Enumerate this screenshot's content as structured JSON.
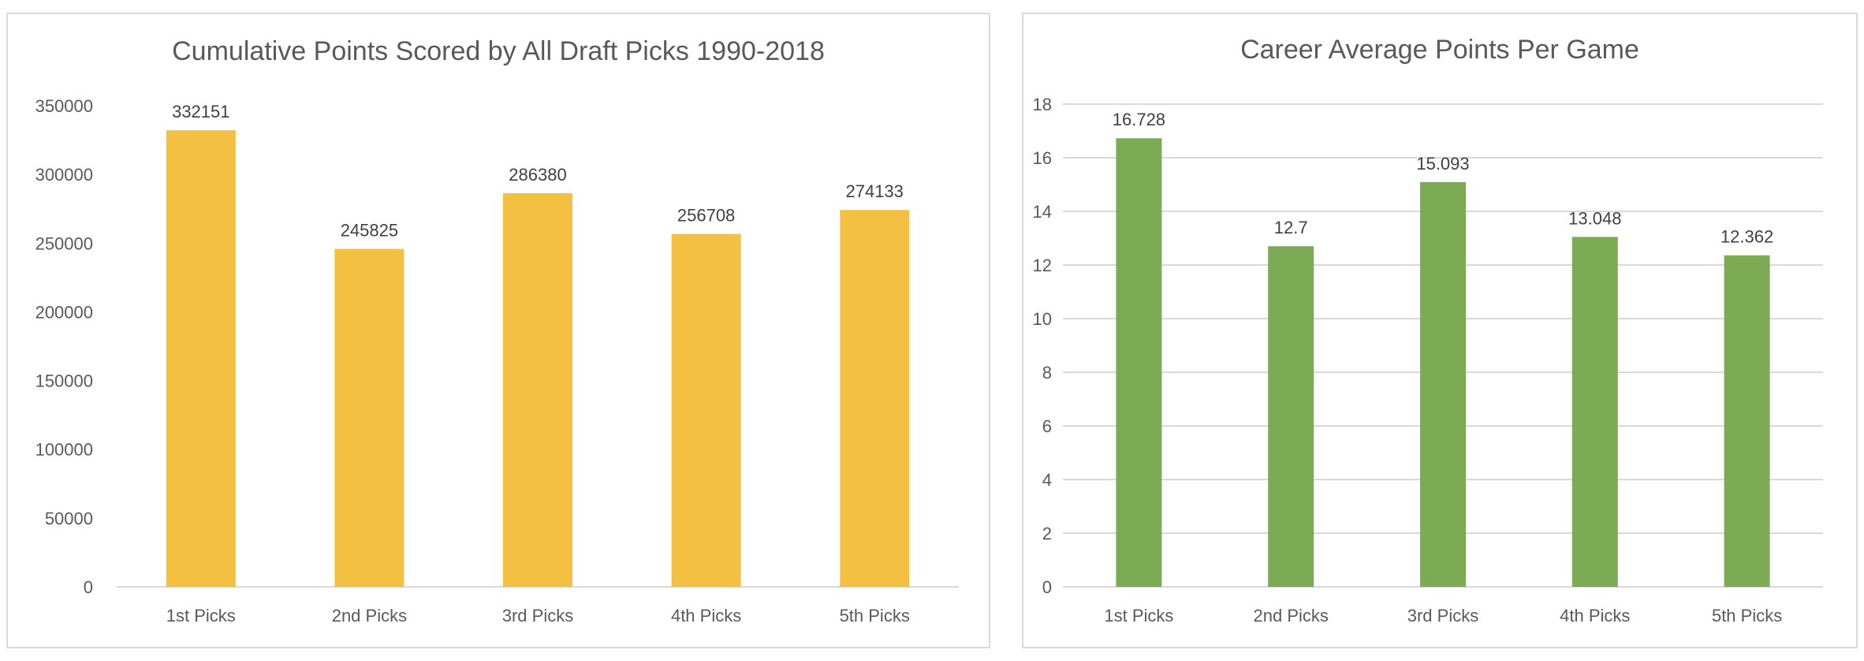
{
  "chart_data": [
    {
      "type": "bar",
      "title": "Cumulative Points Scored by All Draft Picks 1990-2018",
      "xlabel": "",
      "ylabel": "",
      "categories": [
        "1st Picks",
        "2nd Picks",
        "3rd Picks",
        "4th Picks",
        "5th Picks"
      ],
      "values": [
        332151,
        245825,
        286380,
        256708,
        274133
      ],
      "ylim": [
        0,
        350000
      ],
      "yticks": [
        0,
        50000,
        100000,
        150000,
        200000,
        250000,
        300000,
        350000
      ],
      "grid": false,
      "legend": "none",
      "bar_color": "#F4C042",
      "data_labels": true
    },
    {
      "type": "bar",
      "title": "Career Average Points Per Game",
      "xlabel": "",
      "ylabel": "",
      "categories": [
        "1st Picks",
        "2nd Picks",
        "3rd Picks",
        "4th Picks",
        "5th Picks"
      ],
      "values": [
        16.728,
        12.7,
        15.093,
        13.048,
        12.362
      ],
      "ylim": [
        0,
        18
      ],
      "yticks": [
        0,
        2,
        4,
        6,
        8,
        10,
        12,
        14,
        16,
        18
      ],
      "grid": true,
      "legend": "none",
      "bar_color": "#7DAA55",
      "data_labels": true
    }
  ]
}
